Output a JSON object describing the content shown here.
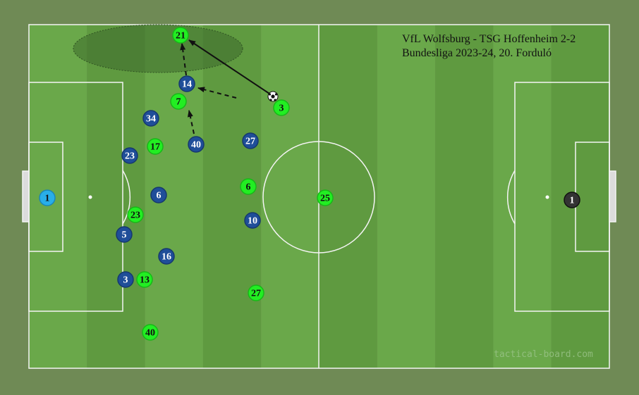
{
  "title": {
    "line1": "VfL Wolfsburg - TSG Hoffenheim 2-2",
    "line2": "Bundesliga 2023-24, 20. Forduló"
  },
  "watermark": "tactical-board.com",
  "colors": {
    "pitch_light": "#6aa84a",
    "pitch_dark": "#5f9a40",
    "border": "#6f8a55",
    "team_green": "#22ee22",
    "team_blue": "#1f4e99",
    "gk_left": "#29aee8",
    "gk_right": "#333333"
  },
  "green_team": [
    {
      "number": "21"
    },
    {
      "number": "7"
    },
    {
      "number": "3"
    },
    {
      "number": "17"
    },
    {
      "number": "6"
    },
    {
      "number": "25"
    },
    {
      "number": "23"
    },
    {
      "number": "13"
    },
    {
      "number": "27"
    },
    {
      "number": "40"
    }
  ],
  "blue_team": [
    {
      "number": "14"
    },
    {
      "number": "34"
    },
    {
      "number": "40"
    },
    {
      "number": "27"
    },
    {
      "number": "23"
    },
    {
      "number": "6"
    },
    {
      "number": "10"
    },
    {
      "number": "5"
    },
    {
      "number": "16"
    },
    {
      "number": "3"
    }
  ],
  "goalkeepers": {
    "left": "1",
    "right": "1"
  },
  "icons": {
    "ball": "soccer-ball-icon",
    "pass": "solid-arrow",
    "run": "dashed-arrow"
  }
}
